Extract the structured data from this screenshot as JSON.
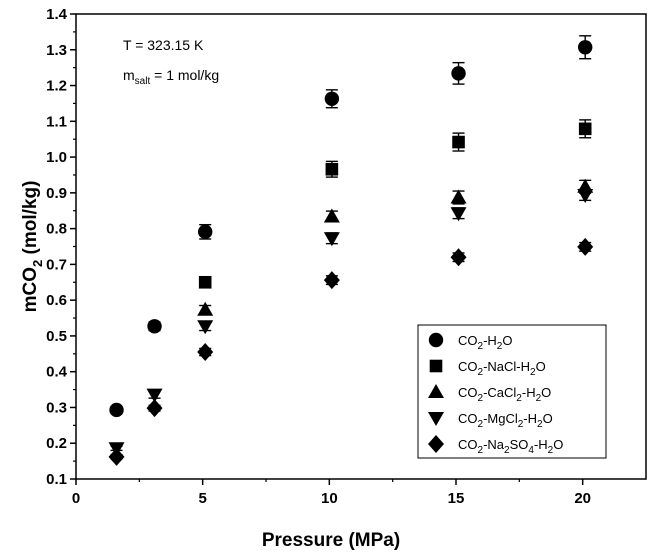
{
  "chart_data": {
    "type": "scatter",
    "xlabel": "Pressure (MPa)",
    "ylabel": {
      "main": "mCO",
      "sub": "2",
      "tail": " (mol/kg)"
    },
    "xlim": [
      0,
      22.5
    ],
    "ylim": [
      0.1,
      1.4
    ],
    "xticks": [
      0,
      5,
      10,
      15,
      20
    ],
    "yticks": [
      0.1,
      0.2,
      0.3,
      0.4,
      0.5,
      0.6,
      0.7,
      0.8,
      0.9,
      1.0,
      1.1,
      1.2,
      1.3,
      1.4
    ],
    "grid": false,
    "legend_position": "bottom-right",
    "annotations": [
      {
        "text": "T = 323.15 K"
      },
      {
        "text": "m",
        "sub": "salt",
        "tail": " = 1 mol/kg"
      }
    ],
    "series": [
      {
        "name": "CO2-H2O",
        "legend": [
          [
            "CO",
            ""
          ],
          [
            "2",
            "sub"
          ],
          [
            "-H",
            ""
          ],
          [
            "2",
            "sub"
          ],
          [
            "O",
            ""
          ]
        ],
        "marker": "circle",
        "points": [
          {
            "x": 1.6,
            "y": 0.293,
            "err": 0.01
          },
          {
            "x": 3.1,
            "y": 0.527,
            "err": 0.012
          },
          {
            "x": 5.1,
            "y": 0.791,
            "err": 0.02
          },
          {
            "x": 10.1,
            "y": 1.163,
            "err": 0.025
          },
          {
            "x": 15.1,
            "y": 1.234,
            "err": 0.03
          },
          {
            "x": 20.1,
            "y": 1.307,
            "err": 0.032
          }
        ]
      },
      {
        "name": "CO2-NaCl-H2O",
        "legend": [
          [
            "CO",
            ""
          ],
          [
            "2",
            "sub"
          ],
          [
            "-NaCl-H",
            ""
          ],
          [
            "2",
            "sub"
          ],
          [
            "O",
            ""
          ]
        ],
        "marker": "square",
        "points": [
          {
            "x": 5.1,
            "y": 0.65,
            "err": 0.012
          },
          {
            "x": 10.1,
            "y": 0.966,
            "err": 0.022
          },
          {
            "x": 15.1,
            "y": 1.042,
            "err": 0.025
          },
          {
            "x": 20.1,
            "y": 1.079,
            "err": 0.025
          }
        ]
      },
      {
        "name": "CO2-CaCl2-H2O",
        "legend": [
          [
            "CO",
            ""
          ],
          [
            "2",
            "sub"
          ],
          [
            "-CaCl",
            ""
          ],
          [
            "2",
            "sub"
          ],
          [
            "-H",
            ""
          ],
          [
            "2",
            "sub"
          ],
          [
            "O",
            ""
          ]
        ],
        "marker": "triangle-up",
        "points": [
          {
            "x": 5.1,
            "y": 0.573,
            "err": 0.012
          },
          {
            "x": 10.1,
            "y": 0.834,
            "err": 0.015
          },
          {
            "x": 15.1,
            "y": 0.887,
            "err": 0.018
          },
          {
            "x": 20.1,
            "y": 0.917,
            "err": 0.018
          }
        ]
      },
      {
        "name": "CO2-MgCl2-H2O",
        "legend": [
          [
            "CO",
            ""
          ],
          [
            "2",
            "sub"
          ],
          [
            "-MgCl",
            ""
          ],
          [
            "2",
            "sub"
          ],
          [
            "-H",
            ""
          ],
          [
            "2",
            "sub"
          ],
          [
            "O",
            ""
          ]
        ],
        "marker": "triangle-down",
        "points": [
          {
            "x": 1.6,
            "y": 0.186,
            "err": 0.006
          },
          {
            "x": 3.1,
            "y": 0.336,
            "err": 0.01
          },
          {
            "x": 5.1,
            "y": 0.527,
            "err": 0.012
          },
          {
            "x": 10.1,
            "y": 0.773,
            "err": 0.015
          },
          {
            "x": 15.1,
            "y": 0.843,
            "err": 0.015
          },
          {
            "x": 20.1,
            "y": 0.894,
            "err": 0.015
          }
        ]
      },
      {
        "name": "CO2-Na2SO4-H2O",
        "legend": [
          [
            "CO",
            ""
          ],
          [
            "2",
            "sub"
          ],
          [
            "-Na",
            ""
          ],
          [
            "2",
            "sub"
          ],
          [
            "SO",
            ""
          ],
          [
            "4",
            "sub"
          ],
          [
            "-H",
            ""
          ],
          [
            "2",
            "sub"
          ],
          [
            "O",
            ""
          ]
        ],
        "marker": "diamond",
        "points": [
          {
            "x": 1.6,
            "y": 0.162,
            "err": 0.006
          },
          {
            "x": 3.1,
            "y": 0.298,
            "err": 0.008
          },
          {
            "x": 5.1,
            "y": 0.455,
            "err": 0.01
          },
          {
            "x": 10.1,
            "y": 0.656,
            "err": 0.012
          },
          {
            "x": 15.1,
            "y": 0.72,
            "err": 0.012
          },
          {
            "x": 20.1,
            "y": 0.749,
            "err": 0.012
          }
        ]
      }
    ]
  }
}
